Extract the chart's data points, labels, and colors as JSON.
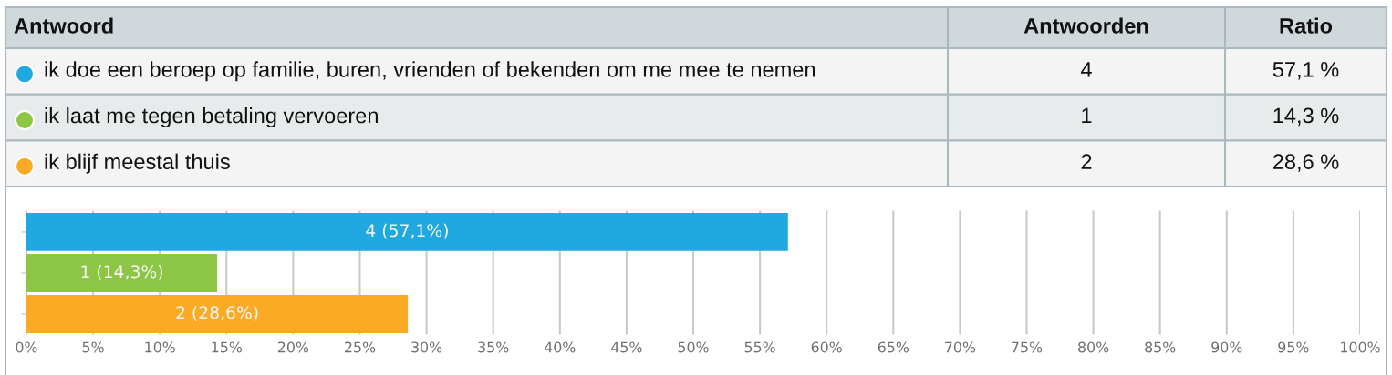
{
  "chart_data": [
    {
      "type": "other",
      "legend_title": "Antwoord",
      "categories": [
        "ik doe een beroep op familie, buren, vrienden of bekenden om me mee te nemen",
        "ik laat me tegen betaling vervoeren",
        "ik blijf meestal thuis"
      ],
      "colors": [
        "#1fa9e0",
        "#8cc644",
        "#fbaa26"
      ],
      "data_labels": true,
      "series": [
        {
          "name": "Antwoorden",
          "colors": [
            "#f4f4f4",
            "#e8ebec",
            "#f4f4f4"
          ],
          "values": [
            4,
            1,
            2
          ]
        },
        {
          "name": "Ratio",
          "values": [
            57.1,
            14.3,
            28.6
          ],
          "value_labels": [
            "57,1 %",
            "14,3 %",
            "28,6 %"
          ]
        }
      ]
    },
    {
      "type": "bar",
      "orientation": "horizontal",
      "categories": [
        null,
        null,
        null
      ],
      "values": [
        57.1,
        14.3,
        28.6
      ],
      "colors": [
        "#1fa9e0",
        "#8cc644",
        "#fbaa26"
      ],
      "value_labels": [
        "4 (57,1%)",
        "1 (14,3%)",
        "2 (28,6%)"
      ],
      "xlim": [
        0,
        100
      ],
      "xticks": [
        {
          "value": 0,
          "label": "0%"
        },
        {
          "value": 5,
          "label": "5%"
        },
        {
          "value": 10,
          "label": "10%"
        },
        {
          "value": 15,
          "label": "15%"
        },
        {
          "value": 20,
          "label": "20%"
        },
        {
          "value": 25,
          "label": "25%"
        },
        {
          "value": 30,
          "label": "30%"
        },
        {
          "value": 35,
          "label": "35%"
        },
        {
          "value": 40,
          "label": "40%"
        },
        {
          "value": 45,
          "label": "45%"
        },
        {
          "value": 50,
          "label": "50%"
        },
        {
          "value": 55,
          "label": "55%"
        },
        {
          "value": 60,
          "label": "60%"
        },
        {
          "value": 65,
          "label": "65%"
        },
        {
          "value": 70,
          "label": "70%"
        },
        {
          "value": 75,
          "label": "75%"
        },
        {
          "value": 80,
          "label": "80%"
        },
        {
          "value": 85,
          "label": "85%"
        },
        {
          "value": 90,
          "label": "90%"
        },
        {
          "value": 95,
          "label": "95%"
        },
        {
          "value": 100,
          "label": "100%"
        }
      ],
      "grid": "x"
    }
  ]
}
